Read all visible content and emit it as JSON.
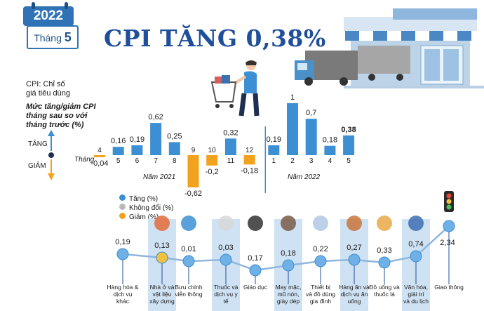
{
  "header": {
    "year": "2022",
    "month_label": "Tháng",
    "month_value": "5",
    "title": "CPI TĂNG 0,38%"
  },
  "notes": {
    "cpi_def_1": "CPI: Chỉ số",
    "cpi_def_2": "giá tiêu dùng",
    "desc_1": "Mức tăng/giảm CPI",
    "desc_2": "tháng sau so với",
    "desc_3": "tháng trước (%)",
    "up": "TĂNG",
    "down": "GIẢM",
    "axis_prefix": "Tháng",
    "year_2021": "Năm 2021",
    "year_2022": "Năm 2022"
  },
  "colors": {
    "up": "#3d8fd3",
    "neutral": "#b9b9b9",
    "down": "#f2a21d",
    "band": "#cfe2f3",
    "title": "#1f4f9a"
  },
  "legend": {
    "up": "Tăng (%)",
    "neutral": "Không đổi (%)",
    "down": "Giảm (%)"
  },
  "chart_data": [
    {
      "type": "bar",
      "categories": [
        "4",
        "5",
        "6",
        "7",
        "8",
        "9",
        "10",
        "11",
        "12",
        "1",
        "2",
        "3",
        "4",
        "5"
      ],
      "values": [
        -0.04,
        0.16,
        0.19,
        0.62,
        0.25,
        -0.62,
        -0.2,
        0.32,
        -0.18,
        0.19,
        1,
        0.7,
        0.18,
        0.38
      ],
      "labels": [
        "-0,04",
        "0,16",
        "0,19",
        "0,62",
        "0,25",
        "-0,62",
        "-0,2",
        "0,32",
        "-0,18",
        "0,19",
        "1",
        "0,7",
        "0,18",
        "0,38"
      ],
      "ylim": [
        -0.65,
        1.0
      ]
    },
    {
      "type": "line",
      "categories": [
        "Hàng hóa & dịch vụ khác",
        "Nhà ở và vật liệu xây dựng",
        "Bưu chính viễn thông",
        "Thuốc và dịch vụ y tế",
        "Giáo dục",
        "May mặc, mũ nón, giày dép",
        "Thiết bị và đồ dùng gia đình",
        "Hàng ăn và dịch vụ ăn uống",
        "Đồ uống và thuốc lá",
        "Văn hóa, giải trí và du lịch",
        "Giao thông"
      ],
      "values": [
        0.19,
        0.13,
        0.01,
        0.03,
        0.17,
        0.18,
        0.22,
        0.27,
        0.33,
        0.74,
        2.34
      ],
      "labels": [
        "0,19",
        "0,13",
        "0,01",
        "0,03",
        "0,17",
        "0,18",
        "0,22",
        "0,27",
        "0,33",
        "0,74",
        "2,34"
      ],
      "highlight": [
        false,
        true,
        false,
        true,
        false,
        true,
        false,
        true,
        false,
        true,
        false
      ]
    }
  ]
}
